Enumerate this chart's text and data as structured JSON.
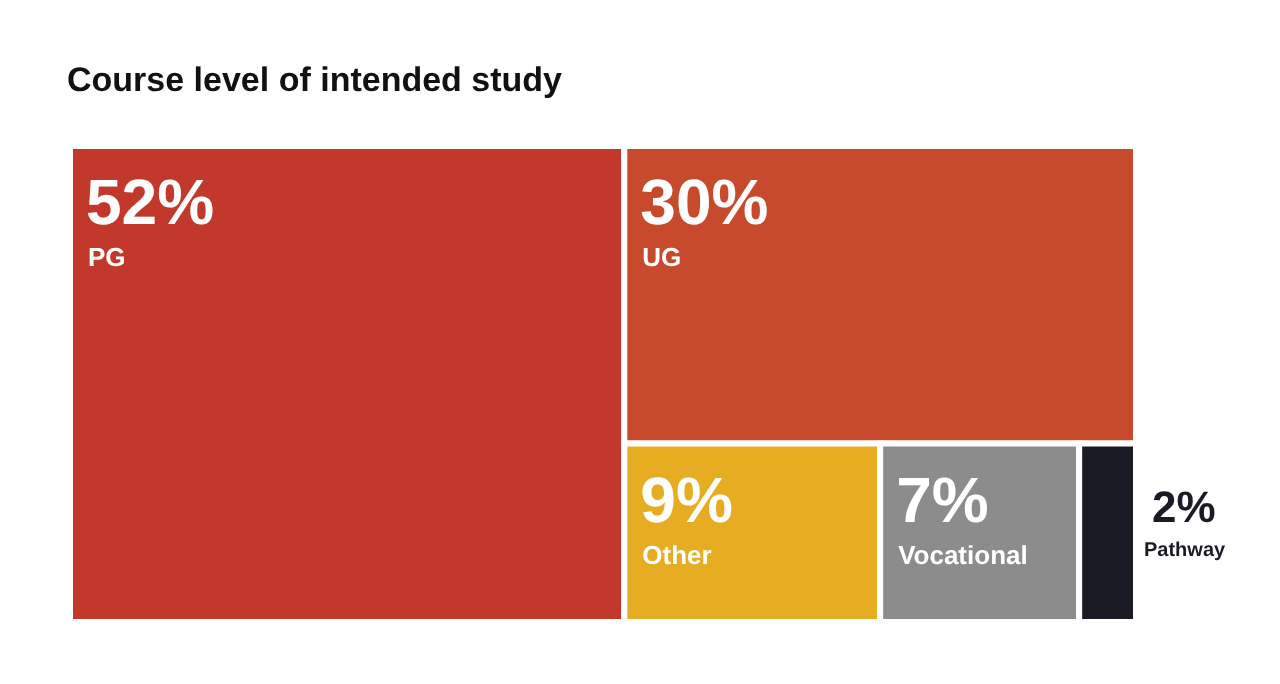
{
  "chart_data": {
    "type": "other",
    "title": "Course level of intended study",
    "categories": [
      "PG",
      "UG",
      "Other",
      "Vocational",
      "Pathway"
    ],
    "values": [
      52,
      30,
      9,
      7,
      2
    ],
    "value_labels": [
      "52%",
      "30%",
      "9%",
      "7%",
      "2%"
    ],
    "colors": [
      "#c2392c",
      "#c84a2c",
      "#e6ad22",
      "#8c8c8c",
      "#1b1b26"
    ]
  }
}
